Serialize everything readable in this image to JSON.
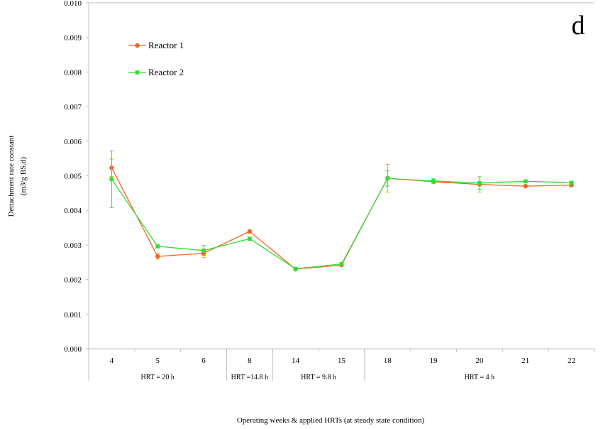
{
  "chart_data": {
    "type": "line",
    "panel_label": "d",
    "ylabel_line1": "Dettachment  rate constant",
    "ylabel_line2": "(m3/g BS.d)",
    "xlabel": "Operating  weeks & applied HRTs  (at steady state condition)",
    "ylim": [
      0,
      0.01
    ],
    "yticks": [
      "0.000",
      "0.001",
      "0.002",
      "0.003",
      "0.004",
      "0.005",
      "0.006",
      "0.007",
      "0.008",
      "0.009",
      "0.010"
    ],
    "categories": [
      "4",
      "5",
      "6",
      "8",
      "14",
      "15",
      "18",
      "19",
      "20",
      "21",
      "22"
    ],
    "hrt_groups": [
      {
        "label": "HRT = 20 h",
        "start": 0,
        "end": 2
      },
      {
        "label": "HRT =14.8 h",
        "start": 3,
        "end": 3
      },
      {
        "label": "HRT = 9.8 h",
        "start": 4,
        "end": 5
      },
      {
        "label": "HRT = 4 h",
        "start": 6,
        "end": 10
      }
    ],
    "legend_position": "top-left",
    "series": [
      {
        "name": "Reactor 1",
        "color": "#f26522",
        "errcolor": "#e6b800",
        "marker": "circle",
        "values": [
          0.00523,
          0.00267,
          0.00276,
          0.00339,
          0.0023,
          0.00242,
          0.00493,
          0.00483,
          0.00475,
          0.0047,
          0.00473
        ],
        "errors": [
          0.00025,
          8e-05,
          0.00012,
          3e-05,
          2e-05,
          2e-05,
          0.0004,
          5e-05,
          0.00022,
          2e-05,
          3e-05
        ]
      },
      {
        "name": "Reactor 2",
        "color": "#33dd33",
        "errcolor": "#33dd33",
        "marker": "square",
        "values": [
          0.0049,
          0.00296,
          0.00284,
          0.00318,
          0.00231,
          0.00245,
          0.00492,
          0.00485,
          0.00479,
          0.00484,
          0.0048
        ],
        "errors": [
          0.00082,
          4e-05,
          0.00014,
          5e-05,
          2e-05,
          4e-05,
          0.00022,
          6e-05,
          0.00018,
          3e-05,
          3e-05
        ]
      }
    ]
  }
}
